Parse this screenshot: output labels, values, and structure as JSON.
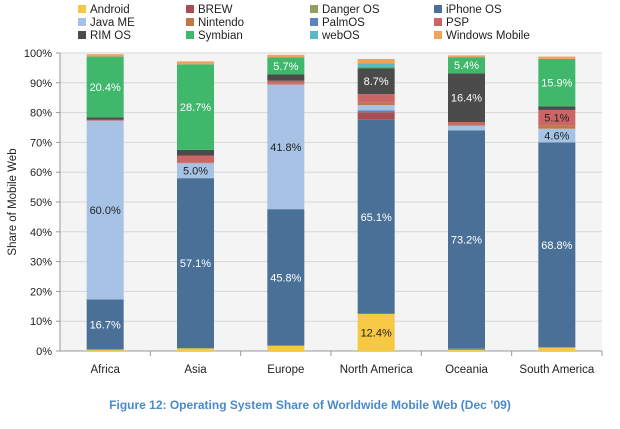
{
  "chart_data": {
    "type": "bar",
    "stacked": true,
    "title": "",
    "caption": "Figure 12: Operating System Share of Worldwide Mobile Web (Dec ’09)",
    "xlabel": "",
    "ylabel": "Share of Mobile Web",
    "ylim": [
      0,
      100
    ],
    "yticks": [
      "0%",
      "10%",
      "20%",
      "30%",
      "40%",
      "50%",
      "60%",
      "70%",
      "80%",
      "90%",
      "100%"
    ],
    "grid": true,
    "legend_position": "top",
    "categories": [
      "Africa",
      "Asia",
      "Europe",
      "North America",
      "Oceania",
      "South America"
    ],
    "series": [
      {
        "name": "Android",
        "color": "#f7c843",
        "values": [
          0.3,
          0.9,
          1.8,
          12.4,
          0.3,
          1.2
        ]
      },
      {
        "name": "Danger OS",
        "color": "#8ea05a",
        "values": [
          0.3,
          0.0,
          0.0,
          0.1,
          0.5,
          0.0
        ]
      },
      {
        "name": "iPhone OS",
        "color": "#4a7098",
        "values": [
          16.7,
          57.1,
          45.8,
          65.1,
          73.2,
          68.8
        ]
      },
      {
        "name": "BREW",
        "color": "#a94e50",
        "values": [
          0.0,
          0.0,
          0.0,
          2.5,
          0.0,
          0.0
        ]
      },
      {
        "name": "PalmOS",
        "color": "#5b84bf",
        "values": [
          0.0,
          0.0,
          0.0,
          0.6,
          0.0,
          0.0
        ]
      },
      {
        "name": "Java ME",
        "color": "#a6c3e6",
        "values": [
          60.0,
          5.0,
          41.8,
          1.8,
          1.6,
          4.6
        ]
      },
      {
        "name": "Nintendo",
        "color": "#c0784a",
        "values": [
          0.0,
          0.2,
          0.3,
          0.8,
          0.4,
          1.2
        ]
      },
      {
        "name": "PSP",
        "color": "#cb6566",
        "values": [
          0.3,
          2.4,
          1.0,
          2.9,
          0.8,
          5.1
        ]
      },
      {
        "name": "RIM OS",
        "color": "#4b4b4b",
        "values": [
          0.8,
          1.9,
          2.1,
          8.7,
          16.4,
          1.2
        ]
      },
      {
        "name": "Symbian",
        "color": "#3fb86c",
        "values": [
          20.4,
          28.7,
          5.7,
          0.5,
          5.4,
          15.9
        ]
      },
      {
        "name": "webOS",
        "color": "#5bb8c8",
        "values": [
          0.0,
          0.0,
          0.0,
          1.2,
          0.0,
          0.0
        ]
      },
      {
        "name": "Windows Mobile",
        "color": "#f0a35e",
        "values": [
          0.8,
          1.0,
          0.9,
          1.4,
          0.6,
          0.8
        ]
      }
    ],
    "legend_order": [
      "Android",
      "BREW",
      "Danger OS",
      "iPhone OS",
      "Java ME",
      "Nintendo",
      "PalmOS",
      "PSP",
      "RIM OS",
      "Symbian",
      "webOS",
      "Windows Mobile"
    ],
    "data_labels": [
      {
        "category": "Africa",
        "series": "Symbian",
        "text": "20.4%"
      },
      {
        "category": "Africa",
        "series": "Java ME",
        "text": "60.0%"
      },
      {
        "category": "Africa",
        "series": "iPhone OS",
        "text": "16.7%"
      },
      {
        "category": "Asia",
        "series": "Symbian",
        "text": "28.7%"
      },
      {
        "category": "Asia",
        "series": "Java ME",
        "text": "5.0%"
      },
      {
        "category": "Asia",
        "series": "iPhone OS",
        "text": "57.1%"
      },
      {
        "category": "Europe",
        "series": "Symbian",
        "text": "5.7%"
      },
      {
        "category": "Europe",
        "series": "Java ME",
        "text": "41.8%"
      },
      {
        "category": "Europe",
        "series": "iPhone OS",
        "text": "45.8%"
      },
      {
        "category": "North America",
        "series": "RIM OS",
        "text": "8.7%"
      },
      {
        "category": "North America",
        "series": "iPhone OS",
        "text": "65.1%"
      },
      {
        "category": "North America",
        "series": "Android",
        "text": "12.4%"
      },
      {
        "category": "Oceania",
        "series": "Symbian",
        "text": "5.4%"
      },
      {
        "category": "Oceania",
        "series": "RIM OS",
        "text": "16.4%"
      },
      {
        "category": "Oceania",
        "series": "iPhone OS",
        "text": "73.2%"
      },
      {
        "category": "South America",
        "series": "Symbian",
        "text": "15.9%"
      },
      {
        "category": "South America",
        "series": "PSP",
        "text": "5.1%"
      },
      {
        "category": "South America",
        "series": "Java ME",
        "text": "4.6%"
      },
      {
        "category": "South America",
        "series": "iPhone OS",
        "text": "68.8%"
      }
    ]
  }
}
